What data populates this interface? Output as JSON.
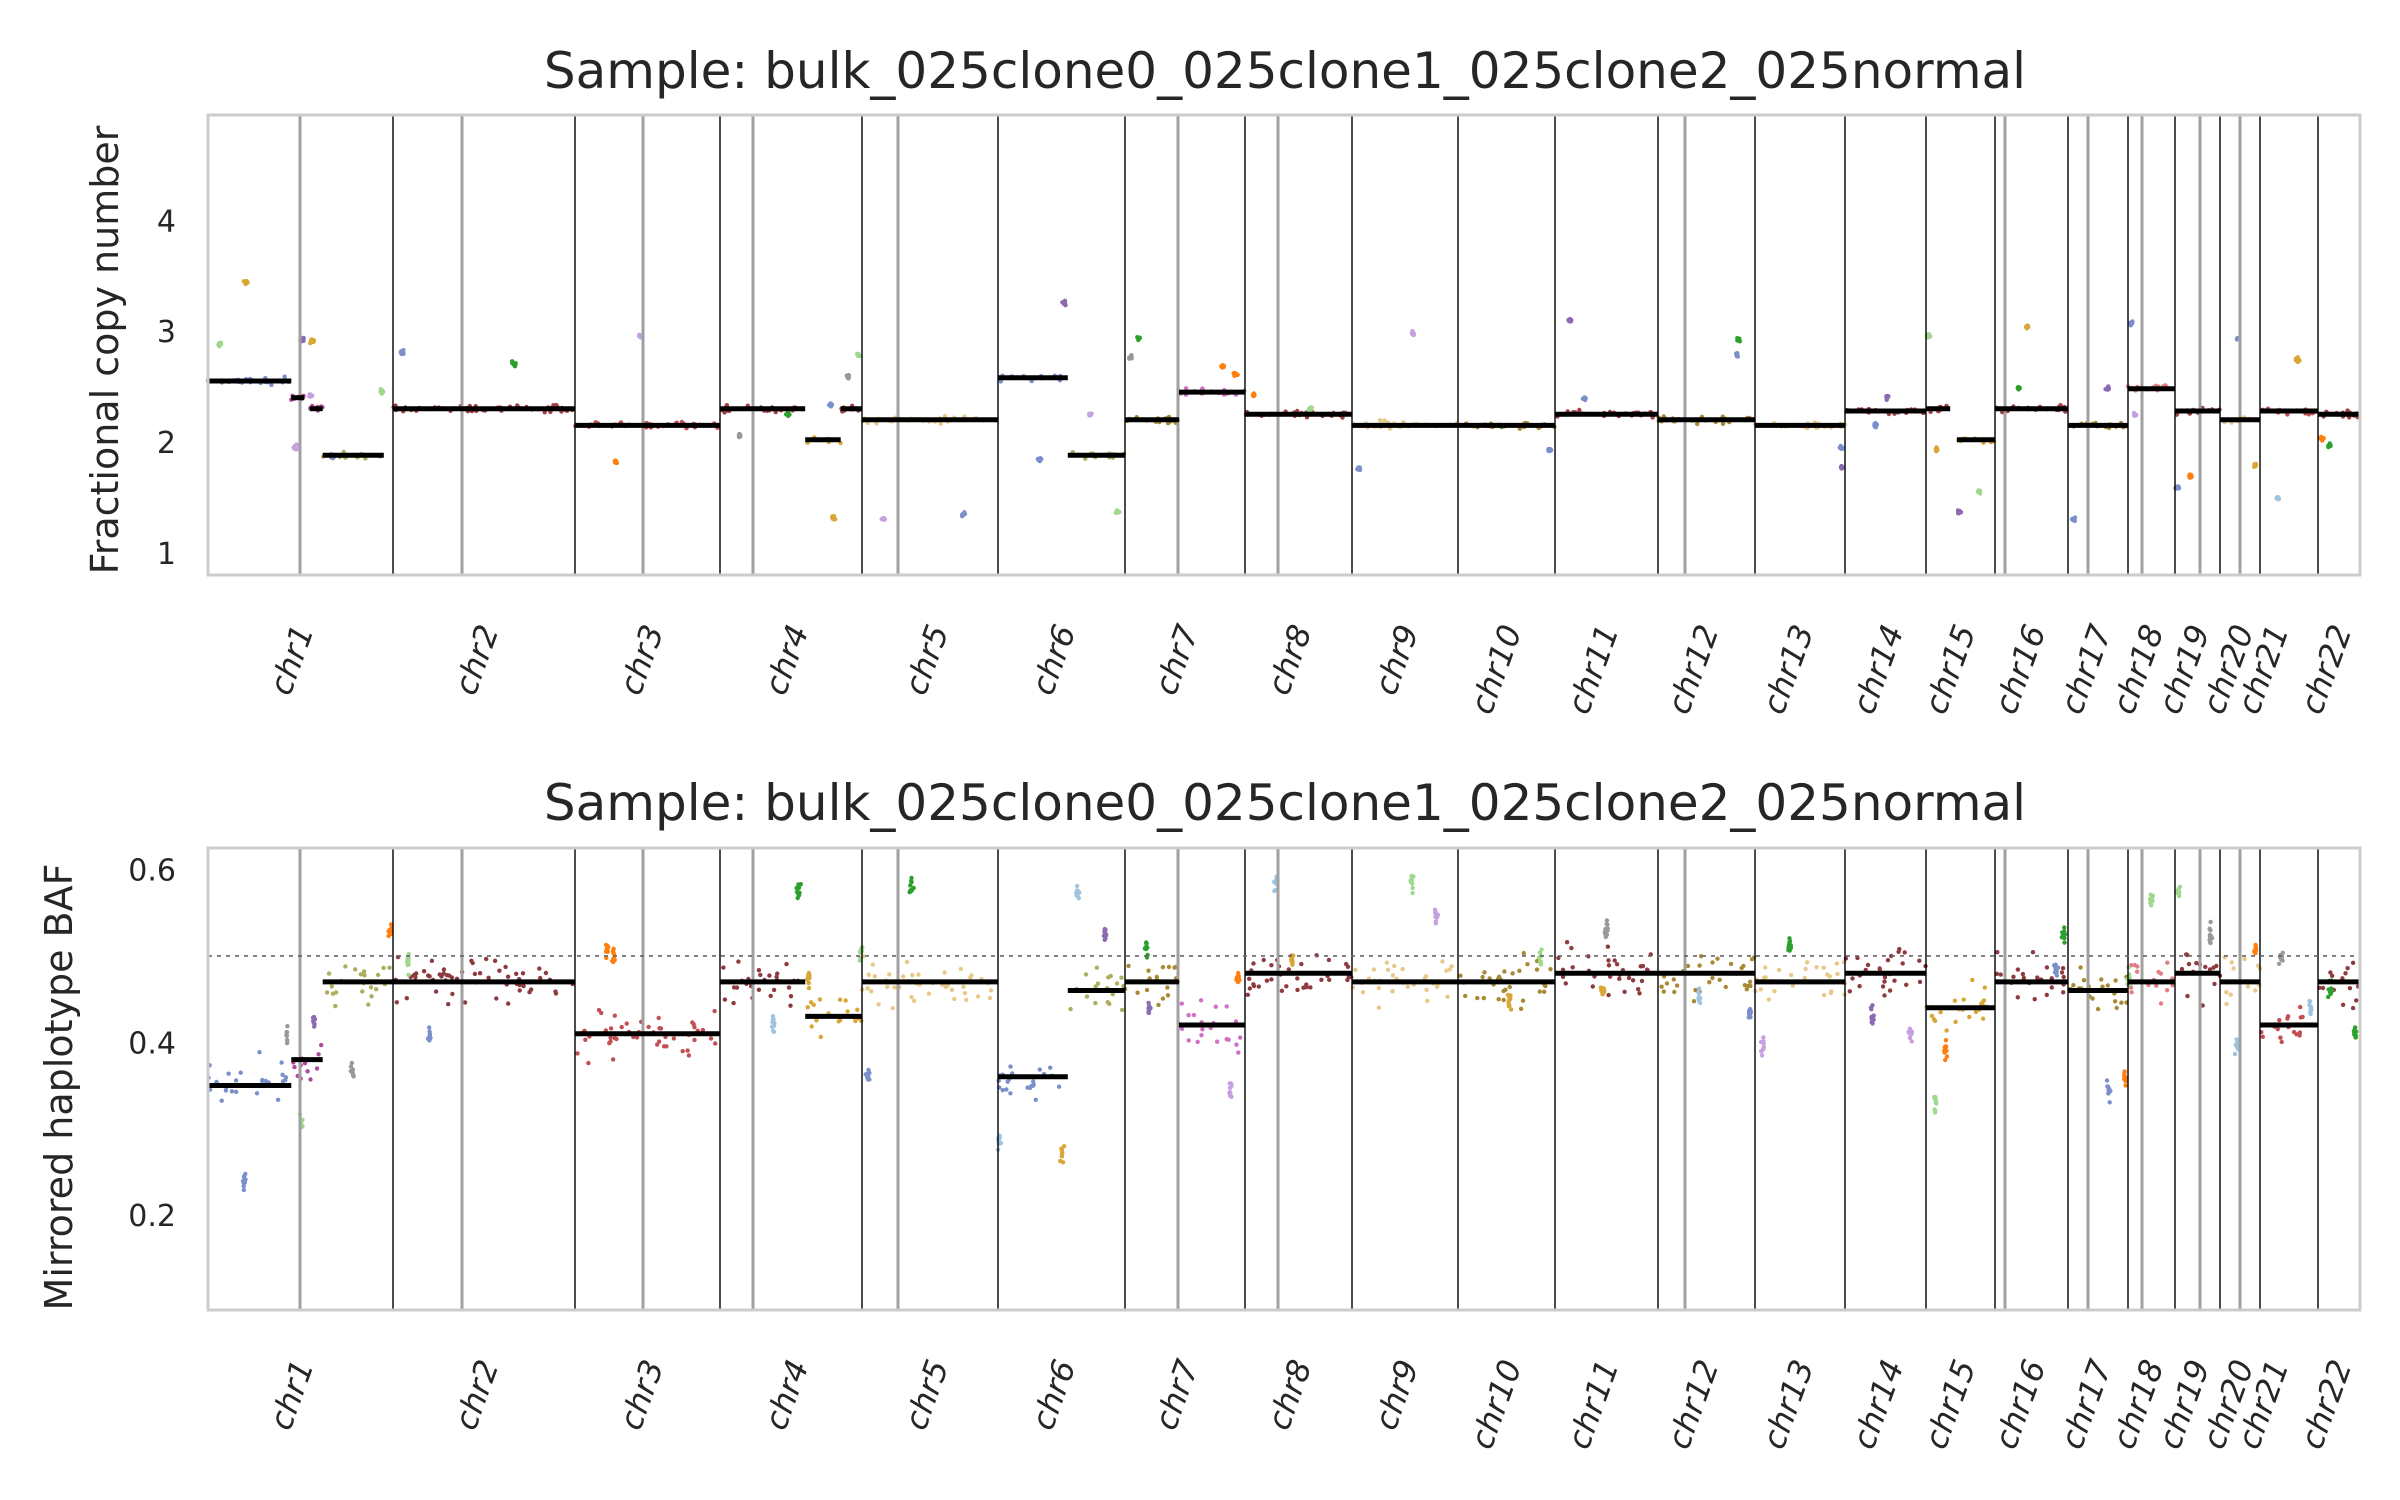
{
  "chart_data": [
    {
      "type": "scatter",
      "title": "Sample: bulk_025clone0_025clone1_025clone2_025normal",
      "ylabel": "Fractional copy number",
      "xlabel": "",
      "ylim": [
        0.8,
        4.95
      ],
      "yticks": [
        1,
        2,
        3,
        4
      ],
      "grid": false,
      "chromosomes": [
        "chr1",
        "chr2",
        "chr3",
        "chr4",
        "chr5",
        "chr6",
        "chr7",
        "chr8",
        "chr9",
        "chr10",
        "chr11",
        "chr12",
        "chr13",
        "chr14",
        "chr15",
        "chr16",
        "chr17",
        "chr18",
        "chr19",
        "chr20",
        "chr21",
        "chr22"
      ],
      "segments": [
        {
          "chr": "chr1",
          "f0": 0.0,
          "f1": 0.45,
          "value": 2.55,
          "color": "#7b8fcb"
        },
        {
          "chr": "chr1",
          "f0": 0.45,
          "f1": 0.52,
          "value": 2.4,
          "color": "#b04a9a"
        },
        {
          "chr": "chr1",
          "f0": 0.55,
          "f1": 0.62,
          "value": 2.3,
          "color": "#b04a9a"
        },
        {
          "chr": "chr1",
          "f0": 0.62,
          "f1": 0.95,
          "value": 1.88,
          "color": "#aeae5e"
        },
        {
          "chr": "chr2",
          "f0": 0.0,
          "f1": 1.0,
          "value": 2.3,
          "color": "#a34146"
        },
        {
          "chr": "chr3",
          "f0": 0.0,
          "f1": 1.0,
          "value": 2.15,
          "color": "#c34f55"
        },
        {
          "chr": "chr4",
          "f0": 0.0,
          "f1": 0.6,
          "value": 2.3,
          "color": "#a34146"
        },
        {
          "chr": "chr4",
          "f0": 0.6,
          "f1": 0.85,
          "value": 2.02,
          "color": "#d8a735"
        },
        {
          "chr": "chr4",
          "f0": 0.85,
          "f1": 1.0,
          "value": 2.3,
          "color": "#a34146"
        },
        {
          "chr": "chr5",
          "f0": 0.0,
          "f1": 1.0,
          "value": 2.2,
          "color": "#e8c98a"
        },
        {
          "chr": "chr6",
          "f0": 0.0,
          "f1": 0.55,
          "value": 2.58,
          "color": "#7b8fcb"
        },
        {
          "chr": "chr6",
          "f0": 0.55,
          "f1": 1.0,
          "value": 1.88,
          "color": "#aeae5e"
        },
        {
          "chr": "chr7",
          "f0": 0.0,
          "f1": 0.45,
          "value": 2.2,
          "color": "#a88a35"
        },
        {
          "chr": "chr7",
          "f0": 0.45,
          "f1": 1.0,
          "value": 2.45,
          "color": "#cf6fc5"
        },
        {
          "chr": "chr8",
          "f0": 0.0,
          "f1": 1.0,
          "value": 2.25,
          "color": "#a34146"
        },
        {
          "chr": "chr9",
          "f0": 0.0,
          "f1": 1.0,
          "value": 2.15,
          "color": "#e8c98a"
        },
        {
          "chr": "chr10",
          "f0": 0.0,
          "f1": 1.0,
          "value": 2.15,
          "color": "#a88a35"
        },
        {
          "chr": "chr11",
          "f0": 0.0,
          "f1": 1.0,
          "value": 2.25,
          "color": "#a34146"
        },
        {
          "chr": "chr12",
          "f0": 0.0,
          "f1": 1.0,
          "value": 2.2,
          "color": "#a88a35"
        },
        {
          "chr": "chr13",
          "f0": 0.0,
          "f1": 1.0,
          "value": 2.15,
          "color": "#e8c98a"
        },
        {
          "chr": "chr14",
          "f0": 0.0,
          "f1": 1.0,
          "value": 2.28,
          "color": "#a34146"
        },
        {
          "chr": "chr15",
          "f0": 0.0,
          "f1": 0.35,
          "value": 2.3,
          "color": "#a34146"
        },
        {
          "chr": "chr15",
          "f0": 0.45,
          "f1": 1.0,
          "value": 2.02,
          "color": "#d8a735"
        },
        {
          "chr": "chr16",
          "f0": 0.0,
          "f1": 1.0,
          "value": 2.3,
          "color": "#a34146"
        },
        {
          "chr": "chr17",
          "f0": 0.0,
          "f1": 1.0,
          "value": 2.15,
          "color": "#a88a35"
        },
        {
          "chr": "chr18",
          "f0": 0.0,
          "f1": 1.0,
          "value": 2.48,
          "color": "#e07f86"
        },
        {
          "chr": "chr19",
          "f0": 0.0,
          "f1": 1.0,
          "value": 2.28,
          "color": "#a34146"
        },
        {
          "chr": "chr20",
          "f0": 0.0,
          "f1": 1.0,
          "value": 2.2,
          "color": "#e8c98a"
        },
        {
          "chr": "chr21",
          "f0": 0.0,
          "f1": 1.0,
          "value": 2.28,
          "color": "#c34f55"
        },
        {
          "chr": "chr22",
          "f0": 0.0,
          "f1": 1.0,
          "value": 2.25,
          "color": "#a34146"
        }
      ]
    },
    {
      "type": "scatter",
      "title": "Sample: bulk_025clone0_025clone1_025clone2_025normal",
      "ylabel": "Mirrored haplotype BAF",
      "xlabel": "",
      "ylim": [
        0.09,
        0.625
      ],
      "yticks": [
        0.2,
        0.4,
        0.6
      ],
      "reference_line": 0.5,
      "grid": false,
      "chromosomes": [
        "chr1",
        "chr2",
        "chr3",
        "chr4",
        "chr5",
        "chr6",
        "chr7",
        "chr8",
        "chr9",
        "chr10",
        "chr11",
        "chr12",
        "chr13",
        "chr14",
        "chr15",
        "chr16",
        "chr17",
        "chr18",
        "chr19",
        "chr20",
        "chr21",
        "chr22"
      ],
      "segments": [
        {
          "chr": "chr1",
          "f0": 0.0,
          "f1": 0.45,
          "value": 0.35,
          "color": "#7b8fcb"
        },
        {
          "chr": "chr1",
          "f0": 0.45,
          "f1": 0.62,
          "value": 0.38,
          "color": "#b04a9a"
        },
        {
          "chr": "chr1",
          "f0": 0.62,
          "f1": 1.0,
          "value": 0.47,
          "color": "#aeae5e"
        },
        {
          "chr": "chr2",
          "f0": 0.0,
          "f1": 1.0,
          "value": 0.47,
          "color": "#8e3b40"
        },
        {
          "chr": "chr3",
          "f0": 0.0,
          "f1": 1.0,
          "value": 0.41,
          "color": "#c34f55"
        },
        {
          "chr": "chr4",
          "f0": 0.0,
          "f1": 0.6,
          "value": 0.47,
          "color": "#8e3b40"
        },
        {
          "chr": "chr4",
          "f0": 0.6,
          "f1": 1.0,
          "value": 0.43,
          "color": "#d8a735"
        },
        {
          "chr": "chr5",
          "f0": 0.0,
          "f1": 1.0,
          "value": 0.47,
          "color": "#e8c98a"
        },
        {
          "chr": "chr6",
          "f0": 0.0,
          "f1": 0.55,
          "value": 0.36,
          "color": "#7b8fcb"
        },
        {
          "chr": "chr6",
          "f0": 0.55,
          "f1": 1.0,
          "value": 0.46,
          "color": "#aeae5e"
        },
        {
          "chr": "chr7",
          "f0": 0.0,
          "f1": 0.45,
          "value": 0.47,
          "color": "#a88a35"
        },
        {
          "chr": "chr7",
          "f0": 0.45,
          "f1": 1.0,
          "value": 0.42,
          "color": "#cf6fc5"
        },
        {
          "chr": "chr8",
          "f0": 0.0,
          "f1": 1.0,
          "value": 0.48,
          "color": "#8e3b40"
        },
        {
          "chr": "chr9",
          "f0": 0.0,
          "f1": 1.0,
          "value": 0.47,
          "color": "#e8c98a"
        },
        {
          "chr": "chr10",
          "f0": 0.0,
          "f1": 1.0,
          "value": 0.47,
          "color": "#a88a35"
        },
        {
          "chr": "chr11",
          "f0": 0.0,
          "f1": 1.0,
          "value": 0.48,
          "color": "#8e3b40"
        },
        {
          "chr": "chr12",
          "f0": 0.0,
          "f1": 1.0,
          "value": 0.48,
          "color": "#a88a35"
        },
        {
          "chr": "chr13",
          "f0": 0.0,
          "f1": 1.0,
          "value": 0.47,
          "color": "#e8c98a"
        },
        {
          "chr": "chr14",
          "f0": 0.0,
          "f1": 1.0,
          "value": 0.48,
          "color": "#8e3b40"
        },
        {
          "chr": "chr15",
          "f0": 0.0,
          "f1": 1.0,
          "value": 0.44,
          "color": "#d8a735"
        },
        {
          "chr": "chr16",
          "f0": 0.0,
          "f1": 1.0,
          "value": 0.47,
          "color": "#8e3b40"
        },
        {
          "chr": "chr17",
          "f0": 0.0,
          "f1": 1.0,
          "value": 0.46,
          "color": "#a88a35"
        },
        {
          "chr": "chr18",
          "f0": 0.0,
          "f1": 1.0,
          "value": 0.47,
          "color": "#e07f86"
        },
        {
          "chr": "chr19",
          "f0": 0.0,
          "f1": 1.0,
          "value": 0.48,
          "color": "#8e3b40"
        },
        {
          "chr": "chr20",
          "f0": 0.0,
          "f1": 1.0,
          "value": 0.47,
          "color": "#e8c98a"
        },
        {
          "chr": "chr21",
          "f0": 0.0,
          "f1": 1.0,
          "value": 0.42,
          "color": "#c34f55"
        },
        {
          "chr": "chr22",
          "f0": 0.0,
          "f1": 1.0,
          "value": 0.47,
          "color": "#8e3b40"
        }
      ]
    }
  ]
}
